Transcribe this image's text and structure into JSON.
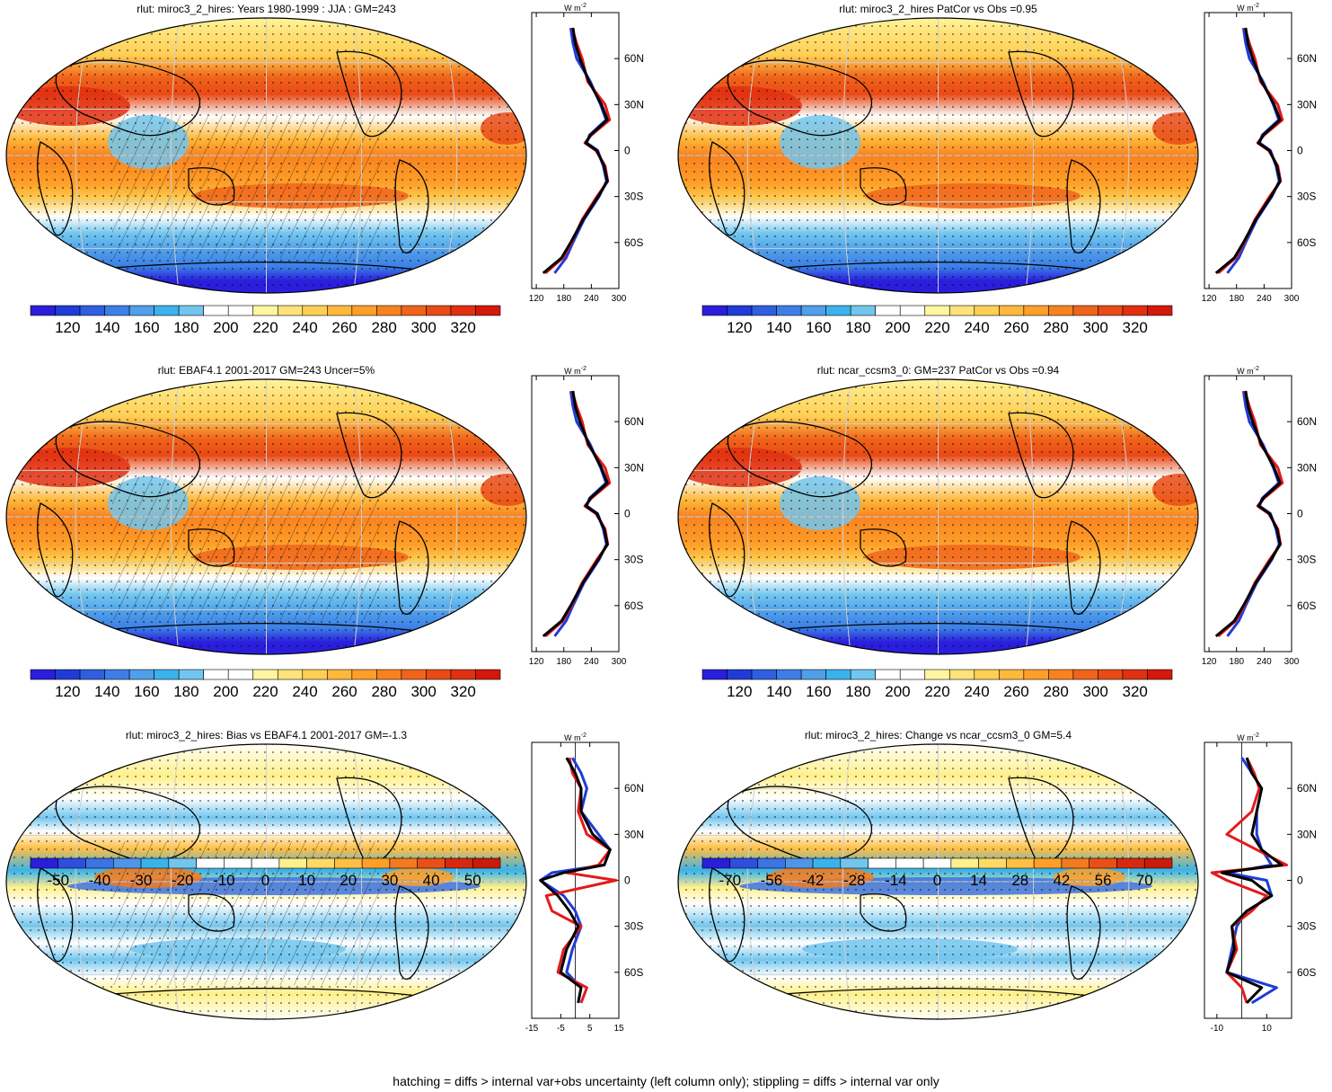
{
  "colors": {
    "abs_scale": [
      "#2a1edc",
      "#1f3bd8",
      "#2e5fe0",
      "#3d7fe6",
      "#4f9fea",
      "#3ab3ec",
      "#72c6ee",
      "#ffffff",
      "#ffffff",
      "#fff6a0",
      "#ffe27a",
      "#ffcf55",
      "#ffb83a",
      "#ff9f28",
      "#f98220",
      "#f0641a",
      "#e94a16",
      "#e03010",
      "#d4180c"
    ],
    "diff_scale": [
      "#2a1edc",
      "#2e4fde",
      "#3d73e4",
      "#4f95e8",
      "#3ab3ec",
      "#72c6ee",
      "#ffffff",
      "#ffffff",
      "#ffffff",
      "#fff08c",
      "#ffd966",
      "#ffbf45",
      "#ff9f28",
      "#f47a1e",
      "#e85018",
      "#d42a10",
      "#c81c0c"
    ],
    "obs_line": "#000000",
    "model_line": "#e31a1c",
    "alt_line": "#1f3bd8"
  },
  "panels": [
    {
      "id": "p1",
      "title": "rlut: miroc3_2_hires: Years 1980-1999 : JJA : GM=243",
      "cbar_kind": "abs",
      "cbar_labels": [
        "120",
        "140",
        "160",
        "180",
        "200",
        "220",
        "240",
        "260",
        "280",
        "300",
        "320"
      ],
      "zonal_unit": "W m",
      "zonal_unit_sup": "-2",
      "zonal_xticks": [
        "120",
        "180",
        "240",
        "300"
      ],
      "zonal_lat_labels": [
        "60N",
        "30N",
        "0",
        "30S",
        "60S"
      ],
      "hatch": true,
      "profile": "abs"
    },
    {
      "id": "p2",
      "title": "rlut: miroc3_2_hires PatCor vs Obs =0.95",
      "cbar_kind": "abs",
      "cbar_labels": [
        "120",
        "140",
        "160",
        "180",
        "200",
        "220",
        "240",
        "260",
        "280",
        "300",
        "320"
      ],
      "zonal_unit": "W m",
      "zonal_unit_sup": "-2",
      "zonal_xticks": [
        "120",
        "180",
        "240",
        "300"
      ],
      "zonal_lat_labels": [
        "60N",
        "30N",
        "0",
        "30S",
        "60S"
      ],
      "hatch": false,
      "profile": "abs"
    },
    {
      "id": "p3",
      "title": "rlut: EBAF4.1 2001-2017 GM=243 Uncer=5%",
      "cbar_kind": "abs",
      "cbar_labels": [
        "120",
        "140",
        "160",
        "180",
        "200",
        "220",
        "240",
        "260",
        "280",
        "300",
        "320"
      ],
      "zonal_unit": "W m",
      "zonal_unit_sup": "-2",
      "zonal_xticks": [
        "120",
        "180",
        "240",
        "300"
      ],
      "zonal_lat_labels": [
        "60N",
        "30N",
        "0",
        "30S",
        "60S"
      ],
      "hatch": true,
      "profile": "abs"
    },
    {
      "id": "p4",
      "title": "rlut: ncar_ccsm3_0: GM=237 PatCor vs Obs =0.94",
      "cbar_kind": "abs",
      "cbar_labels": [
        "120",
        "140",
        "160",
        "180",
        "200",
        "220",
        "240",
        "260",
        "280",
        "300",
        "320"
      ],
      "zonal_unit": "W m",
      "zonal_unit_sup": "-2",
      "zonal_xticks": [
        "120",
        "180",
        "240",
        "300"
      ],
      "zonal_lat_labels": [
        "60N",
        "30N",
        "0",
        "30S",
        "60S"
      ],
      "hatch": false,
      "profile": "abs"
    },
    {
      "id": "p5",
      "title": "rlut: miroc3_2_hires: Bias vs EBAF4.1 2001-2017 GM=-1.3",
      "cbar_kind": "diff",
      "cbar_labels": [
        "-50",
        "-40",
        "-30",
        "-20",
        "-10",
        "0",
        "10",
        "20",
        "30",
        "40",
        "50"
      ],
      "zonal_unit": "W m",
      "zonal_unit_sup": "-2",
      "zonal_xticks": [
        "-15",
        "-5",
        "5",
        "15"
      ],
      "zonal_lat_labels": [
        "60N",
        "30N",
        "0",
        "30S",
        "60S"
      ],
      "hatch": true,
      "profile": "bias"
    },
    {
      "id": "p6",
      "title": "rlut: miroc3_2_hires: Change vs ncar_ccsm3_0 GM=5.4",
      "cbar_kind": "diff",
      "cbar_labels": [
        "-70",
        "-56",
        "-42",
        "-28",
        "-14",
        "0",
        "14",
        "28",
        "42",
        "56",
        "70"
      ],
      "zonal_unit": "W m",
      "zonal_unit_sup": "-2",
      "zonal_xticks": [
        "-10",
        "10"
      ],
      "zonal_lat_labels": [
        "60N",
        "30N",
        "0",
        "30S",
        "60S"
      ],
      "hatch": false,
      "profile": "change"
    }
  ],
  "footnote": "hatching = diffs > internal var+obs uncertainty (left column only); stippling = diffs > internal var only",
  "chart_data": {
    "type": "heatmap",
    "variable": "rlut",
    "units": "W m-2",
    "maps": [
      {
        "title": "rlut: miroc3_2_hires: Years 1980-1999 : JJA : GM=243",
        "colorbar_range": [
          110,
          330
        ],
        "colorbar_ticks": [
          120,
          140,
          160,
          180,
          200,
          220,
          240,
          260,
          280,
          300,
          320
        ],
        "global_mean": 243
      },
      {
        "title": "rlut: miroc3_2_hires PatCor vs Obs =0.95",
        "colorbar_range": [
          110,
          330
        ],
        "colorbar_ticks": [
          120,
          140,
          160,
          180,
          200,
          220,
          240,
          260,
          280,
          300,
          320
        ],
        "pattern_correlation": 0.95
      },
      {
        "title": "rlut: EBAF4.1 2001-2017 GM=243 Uncer=5%",
        "colorbar_range": [
          110,
          330
        ],
        "colorbar_ticks": [
          120,
          140,
          160,
          180,
          200,
          220,
          240,
          260,
          280,
          300,
          320
        ],
        "global_mean": 243,
        "uncertainty_pct": 5
      },
      {
        "title": "rlut: ncar_ccsm3_0: GM=237 PatCor vs Obs =0.94",
        "colorbar_range": [
          110,
          330
        ],
        "colorbar_ticks": [
          120,
          140,
          160,
          180,
          200,
          220,
          240,
          260,
          280,
          300,
          320
        ],
        "global_mean": 237,
        "pattern_correlation": 0.94
      },
      {
        "title": "rlut: miroc3_2_hires: Bias vs EBAF4.1 2001-2017 GM=-1.3",
        "colorbar_range": [
          -55,
          55
        ],
        "colorbar_ticks": [
          -50,
          -40,
          -30,
          -20,
          -10,
          0,
          10,
          20,
          30,
          40,
          50
        ],
        "global_mean": -1.3
      },
      {
        "title": "rlut: miroc3_2_hires: Change vs ncar_ccsm3_0 GM=5.4",
        "colorbar_range": [
          -77,
          77
        ],
        "colorbar_ticks": [
          -70,
          -56,
          -42,
          -28,
          -14,
          0,
          14,
          28,
          42,
          56,
          70
        ],
        "global_mean": 5.4
      }
    ],
    "zonal_mean_profiles": {
      "lat": [
        80,
        70,
        60,
        45,
        30,
        20,
        10,
        5,
        0,
        -10,
        -20,
        -30,
        -45,
        -60,
        -70,
        -80
      ],
      "abs_obs": [
        200,
        205,
        215,
        235,
        262,
        275,
        238,
        228,
        252,
        268,
        275,
        255,
        222,
        195,
        175,
        135
      ],
      "abs_model": [
        198,
        208,
        220,
        232,
        270,
        280,
        240,
        226,
        250,
        270,
        276,
        252,
        220,
        197,
        178,
        140
      ],
      "abs_alt": [
        195,
        200,
        208,
        238,
        260,
        272,
        236,
        230,
        254,
        266,
        273,
        257,
        224,
        200,
        185,
        160
      ],
      "bias_model": [
        -2,
        -1,
        2,
        1,
        4,
        12,
        8,
        -3,
        14,
        -10,
        -8,
        2,
        -4,
        -6,
        4,
        2
      ],
      "bias_alt": [
        -1,
        2,
        4,
        2,
        8,
        12,
        10,
        -8,
        -12,
        -4,
        0,
        2,
        -1,
        -3,
        2,
        1
      ],
      "bias_ref": [
        -3,
        0,
        2,
        2,
        6,
        12,
        10,
        -4,
        -12,
        -6,
        -2,
        1,
        -3,
        -5,
        2,
        1
      ],
      "xlim_abs": [
        110,
        300
      ],
      "xlim_bias": [
        -15,
        15
      ],
      "xlim_change": [
        -15,
        20
      ],
      "change_model": [
        2,
        5,
        7,
        4,
        -6,
        6,
        18,
        -12,
        -6,
        10,
        4,
        -4,
        -2,
        -6,
        0,
        2
      ],
      "change_alt": [
        0,
        4,
        8,
        6,
        6,
        8,
        12,
        -6,
        10,
        12,
        2,
        -2,
        -4,
        -6,
        14,
        4
      ],
      "change_ref": [
        2,
        4,
        8,
        6,
        4,
        8,
        16,
        -8,
        4,
        12,
        2,
        -4,
        -3,
        -6,
        8,
        2
      ]
    }
  }
}
